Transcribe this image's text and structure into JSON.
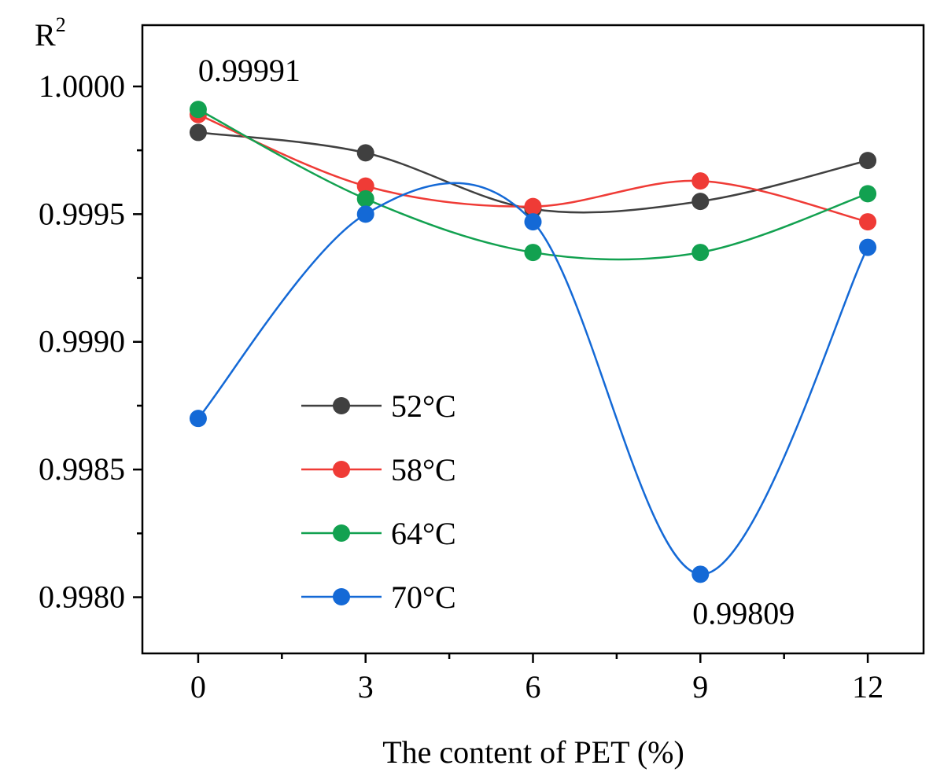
{
  "chart_data": {
    "type": "line",
    "title": "",
    "xlabel": "The content of PET (%)",
    "ylabel": "R",
    "ylabel_superscript": "2",
    "x": [
      0,
      3,
      6,
      9,
      12
    ],
    "xticks": [
      "0",
      "3",
      "6",
      "9",
      "12"
    ],
    "xlim": [
      -1,
      13
    ],
    "ylim": [
      0.99778,
      1.00024
    ],
    "yticks": [
      0.998,
      0.9985,
      0.999,
      0.9995,
      1.0
    ],
    "ytick_labels": [
      "0.9980",
      "0.9985",
      "0.9990",
      "0.9995",
      "1.0000"
    ],
    "yminor": [
      0.99775,
      0.99825,
      0.99875,
      0.99925,
      0.99975
    ],
    "grid": false,
    "legend_position": "center-left",
    "series": [
      {
        "name": "52°C",
        "color": "#404040",
        "values": [
          0.99982,
          0.99974,
          0.99952,
          0.99955,
          0.99971
        ]
      },
      {
        "name": "58°C",
        "color": "#ef3b36",
        "values": [
          0.99989,
          0.99961,
          0.99953,
          0.99963,
          0.99947
        ]
      },
      {
        "name": "64°C",
        "color": "#12a150",
        "values": [
          0.99991,
          0.99956,
          0.99935,
          0.99935,
          0.99958
        ]
      },
      {
        "name": "70°C",
        "color": "#1469d6",
        "values": [
          0.9987,
          0.9995,
          0.99947,
          0.99809,
          0.99937
        ]
      }
    ],
    "annotations": [
      {
        "text": "0.99991",
        "x": 0,
        "y": 0.99991
      },
      {
        "text": "0.99809",
        "x": 9,
        "y": 0.99809
      }
    ]
  }
}
